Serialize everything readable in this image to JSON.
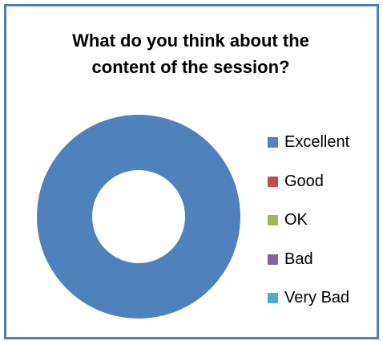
{
  "chart_data": {
    "type": "pie",
    "variant": "doughnut",
    "title": "What do you think about the content of the session?",
    "categories": [
      "Excellent",
      "Good",
      "OK",
      "Bad",
      "Very Bad"
    ],
    "values": [
      100,
      0,
      0,
      0,
      0
    ],
    "colors": [
      "#4f81bd",
      "#c0504d",
      "#9bbb59",
      "#8064a2",
      "#4bacc6"
    ],
    "legend": "right"
  },
  "colors": {
    "frame_border": "#4a7ebb"
  }
}
